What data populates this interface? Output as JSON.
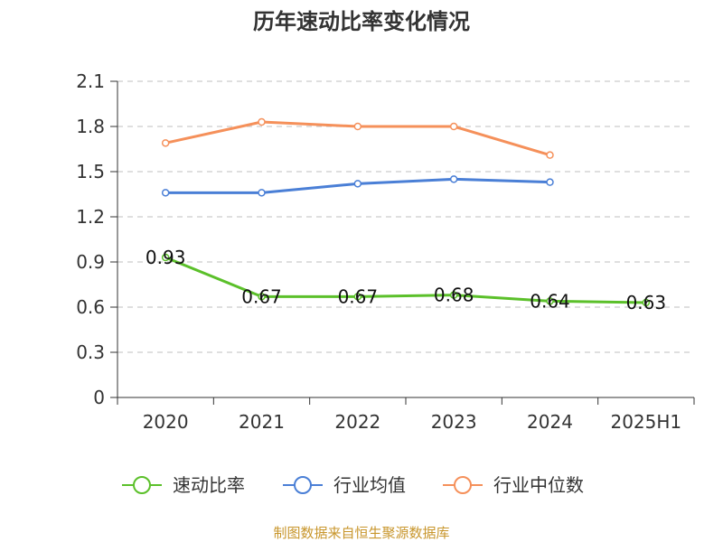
{
  "chart_data": {
    "type": "line",
    "title": "历年速动比率变化情况",
    "categories": [
      "2020",
      "2021",
      "2022",
      "2023",
      "2024",
      "2025H1"
    ],
    "y_ticks": [
      "0",
      "0.3",
      "0.6",
      "0.9",
      "1.2",
      "1.5",
      "1.8",
      "2.1"
    ],
    "ylim": [
      0,
      2.1
    ],
    "grid": true,
    "legend_position": "bottom",
    "series": [
      {
        "name": "速动比率",
        "color": "#5bc02a",
        "values": [
          0.93,
          0.67,
          0.67,
          0.68,
          0.64,
          0.63
        ],
        "labels": [
          "0.93",
          "0.67",
          "0.67",
          "0.68",
          "0.64",
          "0.63"
        ],
        "show_labels": true
      },
      {
        "name": "行业均值",
        "color": "#4a7fd6",
        "values": [
          1.36,
          1.36,
          1.42,
          1.45,
          1.43,
          null
        ],
        "show_labels": false
      },
      {
        "name": "行业中位数",
        "color": "#f5905a",
        "values": [
          1.69,
          1.83,
          1.8,
          1.8,
          1.61,
          null
        ],
        "show_labels": false
      }
    ]
  },
  "source_text": "制图数据来自恒生聚源数据库"
}
